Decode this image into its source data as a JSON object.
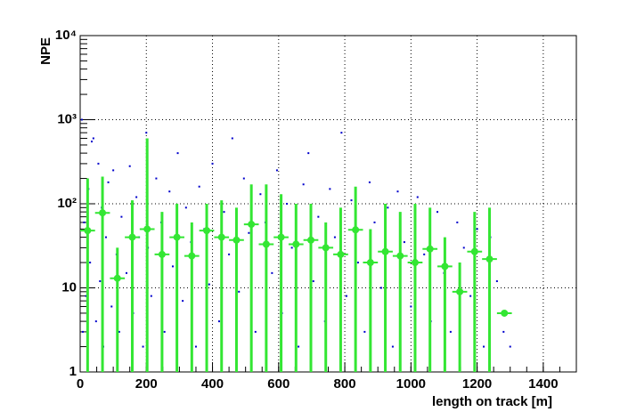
{
  "chart_data": {
    "type": "scatter-profile",
    "x_label": "length on track [m]",
    "y_label": "NPE",
    "log_y": true,
    "grid": true,
    "xlim": [
      0,
      1500
    ],
    "ylim": [
      1,
      10000
    ],
    "xticks": [
      0,
      200,
      400,
      600,
      800,
      1000,
      1200,
      1400
    ],
    "yticks": [
      1,
      10,
      {
        "value": 100,
        "label": "10²"
      },
      {
        "value": 1000,
        "label": "10³"
      },
      {
        "value": 10000,
        "label": "10⁴"
      }
    ],
    "scatter": {
      "color": "#0000cc",
      "x": [
        5,
        8,
        12,
        18,
        25,
        30,
        35,
        40,
        48,
        55,
        60,
        65,
        70,
        78,
        85,
        95,
        100,
        110,
        118,
        125,
        140,
        150,
        160,
        170,
        178,
        190,
        200,
        205,
        215,
        230,
        245,
        255,
        270,
        280,
        295,
        310,
        320,
        335,
        350,
        360,
        375,
        390,
        400,
        420,
        435,
        450,
        460,
        480,
        495,
        510,
        530,
        545,
        560,
        580,
        595,
        610,
        625,
        640,
        660,
        675,
        690,
        705,
        720,
        740,
        755,
        770,
        790,
        805,
        820,
        840,
        860,
        875,
        890,
        910,
        930,
        945,
        960,
        980,
        1000,
        1020,
        1040,
        1060,
        1080,
        1100,
        1120,
        1140,
        1160,
        1180,
        1200,
        1220,
        1240,
        1260,
        1280,
        1300
      ],
      "y": [
        1000,
        3,
        60,
        8,
        150,
        20,
        550,
        600,
        4,
        300,
        12,
        90,
        2,
        40,
        180,
        6,
        250,
        25,
        3,
        70,
        15,
        280,
        5,
        120,
        40,
        2,
        700,
        30,
        8,
        200,
        60,
        3,
        140,
        18,
        400,
        7,
        90,
        35,
        2,
        160,
        50,
        11,
        300,
        4,
        80,
        25,
        600,
        9,
        200,
        45,
        3,
        130,
        60,
        15,
        250,
        5,
        100,
        30,
        2,
        170,
        400,
        12,
        70,
        4,
        150,
        40,
        700,
        8,
        110,
        20,
        3,
        180,
        60,
        10,
        90,
        2,
        140,
        35,
        6,
        120,
        25,
        4,
        80,
        15,
        3,
        60,
        30,
        8,
        50,
        2,
        40,
        12,
        3,
        2
      ]
    },
    "profile": {
      "color": "#33e633",
      "x": [
        22.5,
        67.5,
        112.5,
        157.5,
        202.5,
        247.5,
        292.5,
        337.5,
        382.5,
        427.5,
        472.5,
        517.5,
        562.5,
        607.5,
        652.5,
        697.5,
        742.5,
        787.5,
        832.5,
        877.5,
        922.5,
        967.5,
        1012.5,
        1057.5,
        1102.5,
        1147.5,
        1192.5,
        1237.5,
        1282.5
      ],
      "values": [
        48,
        78,
        13,
        40,
        50,
        25,
        40,
        24,
        48,
        40,
        37,
        57,
        33,
        40,
        33,
        37,
        30,
        25,
        49,
        20,
        27,
        24,
        20,
        29,
        18,
        9,
        27,
        22,
        5
      ],
      "errors": [
        152,
        132,
        17,
        70,
        550,
        55,
        60,
        36,
        52,
        70,
        53,
        113,
        137,
        90,
        67,
        63,
        30,
        65,
        111,
        30,
        73,
        56,
        80,
        61,
        22,
        11,
        53,
        68,
        0
      ],
      "x_half_width": 22.5
    }
  }
}
